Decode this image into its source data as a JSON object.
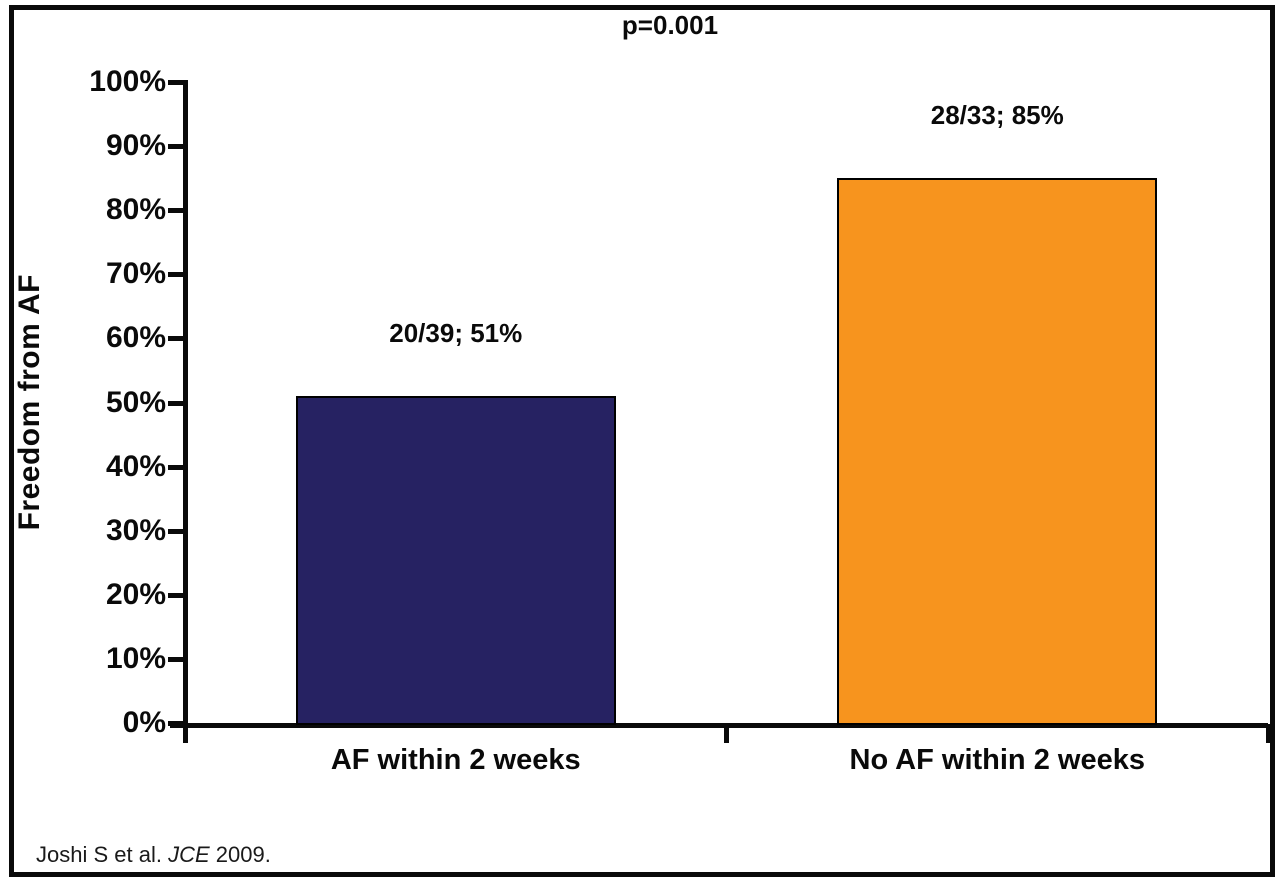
{
  "chart_data": {
    "type": "bar",
    "title": "p=0.001",
    "ylabel": "Freedom from AF",
    "xlabel": "",
    "categories": [
      "AF within 2 weeks",
      "No AF within 2 weeks"
    ],
    "values": [
      51,
      85
    ],
    "bar_labels": [
      "20/39; 51%",
      "28/33; 85%"
    ],
    "bar_colors": [
      "#262262",
      "#F7941E"
    ],
    "ylim": [
      0,
      100
    ],
    "ytick_values": [
      0,
      10,
      20,
      30,
      40,
      50,
      60,
      70,
      80,
      90,
      100
    ],
    "ytick_labels": [
      "0%",
      "10%",
      "20%",
      "30%",
      "40%",
      "50%",
      "60%",
      "70%",
      "80%",
      "90%",
      "100%"
    ],
    "grid": false,
    "legend": false,
    "annotation_p_value": "p=0.001",
    "axis_color": "#0a0a0a"
  },
  "citation": {
    "prefix": "Joshi S et al. ",
    "journal": "JCE",
    "suffix": " 2009."
  }
}
